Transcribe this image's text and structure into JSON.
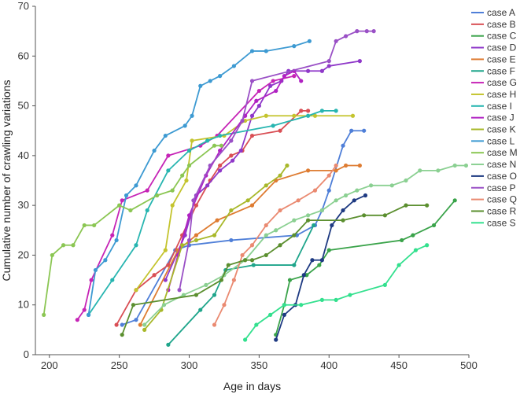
{
  "chart_data": {
    "type": "line",
    "title": "",
    "xlabel": "Age in days",
    "ylabel": "Cumulative number of crawling variations",
    "xlim": [
      190,
      500
    ],
    "ylim": [
      0,
      70
    ],
    "x_ticks": [
      200,
      250,
      300,
      350,
      400,
      450,
      500
    ],
    "y_ticks": [
      0,
      10,
      20,
      30,
      40,
      50,
      60,
      70
    ],
    "grid": false,
    "legend_position": "right",
    "series": [
      {
        "name": "case A",
        "color": "#4f7fd8",
        "points": [
          [
            252,
            6
          ],
          [
            262,
            7
          ],
          [
            290,
            21
          ],
          [
            300,
            22
          ],
          [
            330,
            23
          ],
          [
            377,
            24
          ],
          [
            390,
            26
          ],
          [
            395,
            29
          ],
          [
            400,
            33
          ],
          [
            410,
            42
          ],
          [
            416,
            45
          ],
          [
            425,
            45
          ]
        ]
      },
      {
        "name": "case B",
        "color": "#d94f55",
        "points": [
          [
            248,
            6
          ],
          [
            262,
            13
          ],
          [
            275,
            16
          ],
          [
            285,
            18
          ],
          [
            295,
            24
          ],
          [
            305,
            30
          ],
          [
            315,
            35
          ],
          [
            322,
            38
          ],
          [
            330,
            40
          ],
          [
            338,
            41
          ],
          [
            345,
            44
          ],
          [
            365,
            45
          ],
          [
            380,
            49
          ],
          [
            385,
            49
          ]
        ]
      },
      {
        "name": "case C",
        "color": "#3aa34a",
        "points": [
          [
            362,
            4
          ],
          [
            368,
            10
          ],
          [
            372,
            15
          ],
          [
            384,
            16
          ],
          [
            393,
            18
          ],
          [
            400,
            21
          ],
          [
            452,
            23
          ],
          [
            460,
            24
          ],
          [
            475,
            26
          ],
          [
            490,
            31
          ]
        ]
      },
      {
        "name": "case D",
        "color": "#8f38c9",
        "points": [
          [
            283,
            15
          ],
          [
            297,
            24
          ],
          [
            305,
            32
          ],
          [
            313,
            34
          ],
          [
            322,
            37
          ],
          [
            331,
            39
          ],
          [
            337,
            41
          ],
          [
            345,
            48
          ],
          [
            350,
            50
          ],
          [
            358,
            54
          ],
          [
            366,
            55
          ],
          [
            371,
            57
          ],
          [
            385,
            57
          ],
          [
            395,
            57
          ],
          [
            400,
            58
          ],
          [
            422,
            59
          ]
        ]
      },
      {
        "name": "case E",
        "color": "#de7c32",
        "points": [
          [
            265,
            6
          ],
          [
            292,
            21
          ],
          [
            305,
            24
          ],
          [
            320,
            27
          ],
          [
            345,
            30
          ],
          [
            362,
            35
          ],
          [
            385,
            37
          ],
          [
            405,
            37
          ],
          [
            412,
            38
          ],
          [
            422,
            38
          ]
        ]
      },
      {
        "name": "case F",
        "color": "#1fa58b",
        "points": [
          [
            285,
            2
          ],
          [
            308,
            9
          ],
          [
            318,
            12
          ],
          [
            326,
            17
          ],
          [
            346,
            18
          ],
          [
            375,
            18
          ],
          [
            389,
            26
          ]
        ]
      },
      {
        "name": "case G",
        "color": "#c624b6",
        "points": [
          [
            220,
            7
          ],
          [
            225,
            9
          ],
          [
            230,
            15
          ],
          [
            245,
            24
          ],
          [
            252,
            31
          ],
          [
            270,
            33
          ],
          [
            285,
            40
          ],
          [
            308,
            42
          ],
          [
            320,
            44
          ],
          [
            350,
            53
          ],
          [
            360,
            55
          ],
          [
            375,
            56
          ]
        ]
      },
      {
        "name": "case H",
        "color": "#c4c42e",
        "points": [
          [
            262,
            13
          ],
          [
            283,
            21
          ],
          [
            288,
            30
          ],
          [
            298,
            35
          ],
          [
            302,
            43
          ],
          [
            325,
            44
          ],
          [
            340,
            47
          ],
          [
            355,
            48
          ],
          [
            375,
            48
          ],
          [
            390,
            48
          ],
          [
            417,
            48
          ]
        ]
      },
      {
        "name": "case I",
        "color": "#27b5b0",
        "points": [
          [
            228,
            8
          ],
          [
            245,
            15
          ],
          [
            262,
            22
          ],
          [
            270,
            29
          ],
          [
            285,
            37
          ],
          [
            300,
            41
          ],
          [
            313,
            43
          ],
          [
            322,
            44
          ],
          [
            360,
            46
          ],
          [
            385,
            48
          ],
          [
            395,
            49
          ],
          [
            405,
            49
          ]
        ]
      },
      {
        "name": "case J",
        "color": "#b022c2",
        "points": [
          [
            285,
            13
          ],
          [
            292,
            20
          ],
          [
            300,
            28
          ],
          [
            312,
            36
          ],
          [
            322,
            41
          ],
          [
            340,
            48
          ],
          [
            348,
            51
          ],
          [
            362,
            53
          ],
          [
            368,
            56
          ],
          [
            375,
            57
          ],
          [
            380,
            55
          ]
        ]
      },
      {
        "name": "case K",
        "color": "#a8b82a",
        "points": [
          [
            268,
            5
          ],
          [
            280,
            9
          ],
          [
            295,
            22
          ],
          [
            305,
            23
          ],
          [
            318,
            24
          ],
          [
            330,
            29
          ],
          [
            342,
            31
          ],
          [
            355,
            34
          ],
          [
            365,
            36
          ],
          [
            370,
            38
          ]
        ]
      },
      {
        "name": "case L",
        "color": "#3d9ad2",
        "points": [
          [
            228,
            8
          ],
          [
            233,
            17
          ],
          [
            240,
            19
          ],
          [
            248,
            23
          ],
          [
            255,
            32
          ],
          [
            262,
            34
          ],
          [
            275,
            41
          ],
          [
            283,
            44
          ],
          [
            297,
            46
          ],
          [
            302,
            48
          ],
          [
            308,
            54
          ],
          [
            315,
            55
          ],
          [
            322,
            56
          ],
          [
            332,
            58
          ],
          [
            345,
            61
          ],
          [
            355,
            61
          ],
          [
            375,
            62
          ],
          [
            386,
            63
          ]
        ]
      },
      {
        "name": "case M",
        "color": "#8bc653",
        "points": [
          [
            196,
            8
          ],
          [
            202,
            20
          ],
          [
            210,
            22
          ],
          [
            217,
            22
          ],
          [
            225,
            26
          ],
          [
            232,
            26
          ],
          [
            250,
            30
          ],
          [
            258,
            29
          ],
          [
            277,
            32
          ],
          [
            288,
            33
          ],
          [
            295,
            36
          ],
          [
            300,
            38
          ],
          [
            318,
            42
          ],
          [
            323,
            42
          ]
        ]
      },
      {
        "name": "case N",
        "color": "#8bd092",
        "points": [
          [
            268,
            6
          ],
          [
            282,
            10
          ],
          [
            296,
            12
          ],
          [
            312,
            14
          ],
          [
            325,
            16
          ],
          [
            340,
            19
          ],
          [
            355,
            24
          ],
          [
            362,
            25
          ],
          [
            375,
            27
          ],
          [
            385,
            28
          ],
          [
            395,
            29
          ],
          [
            405,
            31
          ],
          [
            412,
            32
          ],
          [
            420,
            33
          ],
          [
            430,
            34
          ],
          [
            445,
            34
          ],
          [
            455,
            35
          ],
          [
            465,
            37
          ],
          [
            478,
            37
          ],
          [
            490,
            38
          ],
          [
            498,
            38
          ]
        ]
      },
      {
        "name": "case O",
        "color": "#1e3a82",
        "points": [
          [
            362,
            3
          ],
          [
            368,
            8
          ],
          [
            376,
            10
          ],
          [
            382,
            16
          ],
          [
            388,
            19
          ],
          [
            395,
            19
          ],
          [
            402,
            26
          ],
          [
            410,
            29
          ],
          [
            418,
            31
          ],
          [
            426,
            32
          ]
        ]
      },
      {
        "name": "case P",
        "color": "#9a50c6",
        "points": [
          [
            293,
            13
          ],
          [
            300,
            23
          ],
          [
            303,
            31
          ],
          [
            315,
            38
          ],
          [
            330,
            43
          ],
          [
            338,
            47
          ],
          [
            345,
            55
          ],
          [
            400,
            59
          ],
          [
            405,
            63
          ],
          [
            412,
            64
          ],
          [
            420,
            65
          ],
          [
            427,
            65
          ],
          [
            432,
            65
          ]
        ]
      },
      {
        "name": "case Q",
        "color": "#ea8a71",
        "points": [
          [
            318,
            6
          ],
          [
            325,
            10
          ],
          [
            332,
            15
          ],
          [
            338,
            20
          ],
          [
            345,
            22
          ],
          [
            355,
            26
          ],
          [
            365,
            29
          ],
          [
            378,
            31
          ],
          [
            390,
            33
          ],
          [
            400,
            36
          ],
          [
            405,
            38
          ]
        ]
      },
      {
        "name": "case R",
        "color": "#5b8f2f",
        "points": [
          [
            252,
            4
          ],
          [
            260,
            10
          ],
          [
            305,
            12
          ],
          [
            323,
            15
          ],
          [
            328,
            18
          ],
          [
            340,
            19
          ],
          [
            345,
            19
          ],
          [
            355,
            20
          ],
          [
            365,
            22
          ],
          [
            375,
            24
          ],
          [
            385,
            27
          ],
          [
            410,
            27
          ],
          [
            425,
            28
          ],
          [
            440,
            28
          ],
          [
            455,
            30
          ],
          [
            470,
            30
          ]
        ]
      },
      {
        "name": "case S",
        "color": "#33e08e",
        "points": [
          [
            340,
            3
          ],
          [
            348,
            6
          ],
          [
            358,
            8
          ],
          [
            368,
            10
          ],
          [
            380,
            10
          ],
          [
            395,
            11
          ],
          [
            405,
            11
          ],
          [
            415,
            12
          ],
          [
            440,
            14
          ],
          [
            450,
            18
          ],
          [
            462,
            21
          ],
          [
            470,
            22
          ]
        ]
      }
    ]
  }
}
